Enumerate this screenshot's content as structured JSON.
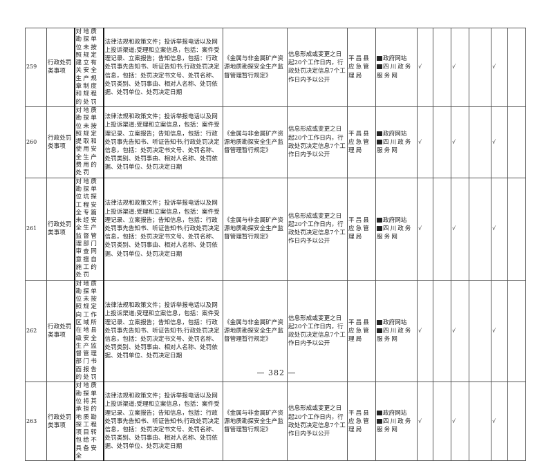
{
  "rows": [
    {
      "num": "259",
      "category": "行政处罚类事项",
      "item": "对地质勘探单位未按照规定建立有关安全生产规章制度和规程的处罚",
      "content": "法律法规和政策文件；投诉举报电话以及网上投诉渠道;受理和立案信息，包括：案件受理记录、立案报告；告知信息，包括：行政处罚事先告知书、听证告知书;行政处罚决定信息，包括：处罚决定书文号、处罚名称、处罚类别、处罚事由、相对人名称、处罚依据、处罚单位、处罚决定日期",
      "basis": "《金属与非金属矿产资源地质勘探安全生产监督管理暂行规定》",
      "time_limit": "信息形成或变更之日起20个工作日内，行政处罚决定信息7个工作日内予以公开",
      "subject": "平昌县应急管理局",
      "channel_1": "政府网站",
      "channel_2": "四川政务服务网",
      "checks": [
        "√",
        "",
        "√",
        "",
        "√",
        ""
      ]
    },
    {
      "num": "260",
      "category": "行政处罚类事项",
      "item": "对地质勘探单位未按照规定提取和使用安全生产费用的处罚",
      "content": "法律法规和政策文件；投诉举报电话以及网上投诉渠道;受理和立案信息，包括：案件受理记录、立案报告；告知信息，包括：行政处罚事先告知书、听证告知书;行政处罚决定信息，包括：处罚决定书文号、处罚名称、处罚类别、处罚事由、相对人名称、处罚依据、处罚单位、处罚决定日期",
      "basis": "《金属与非金属矿产资源地质勘探安全生产监督管理暂行规定》",
      "time_limit": "信息形成或变更之日起20个工作日内，行政处罚决定信息7个工作日内予以公开",
      "subject": "平昌县应急管理局",
      "channel_1": "政府网站",
      "channel_2": "四川政务服务网",
      "checks": [
        "√",
        "",
        "√",
        "",
        "√",
        ""
      ]
    },
    {
      "num": "261",
      "category": "行政处罚类事项",
      "item": "对地质勘探单位坑探工程安全专篇未经安全生产监督管理部门审查同意擅自施工的处罚",
      "content": "法律法规和政策文件；投诉举报电话以及网上投诉渠道;受理和立案信息，包括：案件受理记录、立案报告；告知信息，包括：行政处罚事先告知书、听证告知书;行政处罚决定信息，包括：处罚决定书文号、处罚名称、处罚类别、处罚事由、相对人名称、处罚依据、处罚单位、处罚决定日期",
      "basis": "《金属与非金属矿产资源地质勘探安全生产监督管理暂行规定》",
      "time_limit": "信息形成或变更之日起20个工作日内，行政处罚决定信息7个工作日内予以公开",
      "subject": "平昌县应急管理局",
      "channel_1": "政府网站",
      "channel_2": "四川政务服务网",
      "checks": [
        "√",
        "",
        "√",
        "",
        "√",
        ""
      ]
    },
    {
      "num": "262",
      "category": "行政处罚类事项",
      "item": "对地质勘探单位未按照规定向工作区域所在地县级安全生产监督管理部门书面报告的处罚",
      "content": "法律法规和政策文件；投诉举报电话以及网上投诉渠道;受理和立案信息，包括：案件受理记录、立案报告；告知信息，包括：行政处罚事先告知书、听证告知书;行政处罚决定信息，包括：处罚决定书文号、处罚名称、处罚类别、处罚事由、相对人名称、处罚依据、处罚单位、处罚决定日期",
      "basis": "《金属与非金属矿产资源地质勘探安全生产监督管理暂行规定》",
      "time_limit": "信息形成或变更之日起20个工作日内，行政处罚决定信息7个工作日内予以公开",
      "subject": "平昌县应急管理局",
      "channel_1": "政府网站",
      "channel_2": "四川政务服务网",
      "checks": [
        "√",
        "",
        "√",
        "",
        "√",
        ""
      ]
    },
    {
      "num": "263",
      "category": "行政处罚类事项",
      "item": "对地质勘探单位将其承担的地质勘探工程项目转包给不具备安全",
      "content": "法律法规和政策文件；投诉举报电话以及网上投诉渠道;受理和立案信息，包括：案件受理记录、立案报告；告知信息，包括：行政处罚事先告知书、听证告知书;行政处罚决定信息，包括：处罚决定书文号、处罚名称、处罚类别、处罚事由、相对人名称、处罚依据、处罚单位、处罚决定日期",
      "basis": "《金属与非金属矿产资源地质勘探安全生产监督管理暂行规定》",
      "time_limit": "信息形成或变更之日起20个工作日内，行政处罚决定信息7个工作日内予以公开",
      "subject": "平昌县应急管理局",
      "channel_1": "政府网站",
      "channel_2": "四川政务服务网",
      "checks": [
        "√",
        "",
        "√",
        "",
        "√",
        ""
      ]
    }
  ],
  "footer": {
    "page_number": "— 382 —"
  }
}
